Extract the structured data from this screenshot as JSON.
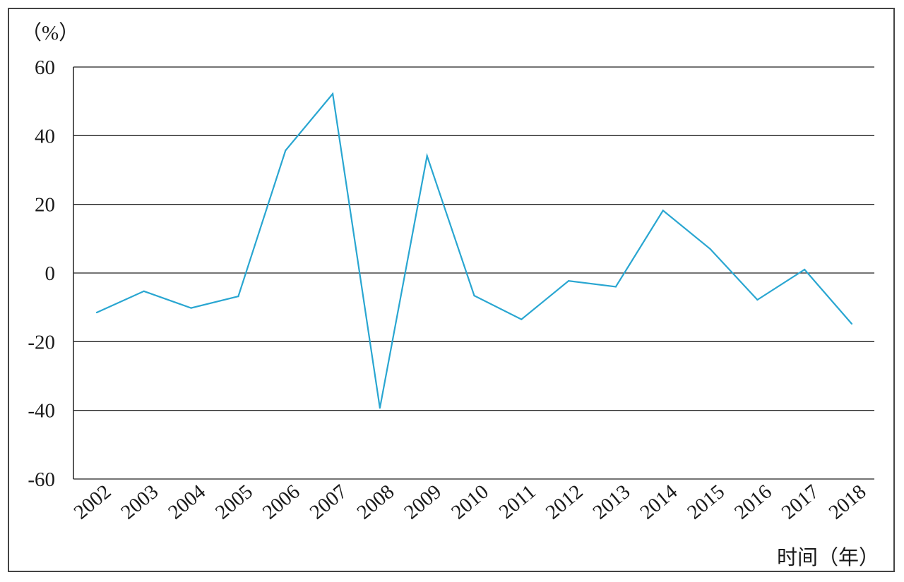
{
  "chart_data": {
    "type": "line",
    "title": "",
    "ylabel": "（%）",
    "xlabel": "时间（年）",
    "x": [
      "2002",
      "2003",
      "2004",
      "2005",
      "2006",
      "2007",
      "2008",
      "2009",
      "2010",
      "2011",
      "2012",
      "2013",
      "2014",
      "2015",
      "2016",
      "2017",
      "2018"
    ],
    "series": [
      {
        "values": [
          -11.5,
          -5.3,
          -10.2,
          -6.8,
          35.7,
          52.2,
          -39.3,
          34.1,
          -6.6,
          -13.5,
          -2.3,
          -4.0,
          18.2,
          7.0,
          -7.8,
          1.0,
          -14.8
        ]
      }
    ],
    "ylim": [
      -60,
      60
    ],
    "yticks": [
      "60",
      "40",
      "20",
      "0",
      "-20",
      "-40",
      "-60"
    ],
    "grid": "horizontal",
    "line_color": "#29a6d1",
    "grid_color": "#222222"
  }
}
